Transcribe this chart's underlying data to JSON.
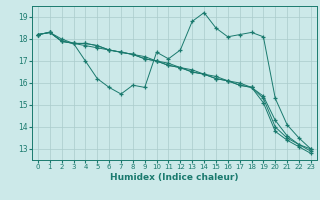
{
  "xlabel": "Humidex (Indice chaleur)",
  "ylabel": "",
  "xlim": [
    -0.5,
    23.5
  ],
  "ylim": [
    12.5,
    19.5
  ],
  "yticks": [
    13,
    14,
    15,
    16,
    17,
    18,
    19
  ],
  "xticks": [
    0,
    1,
    2,
    3,
    4,
    5,
    6,
    7,
    8,
    9,
    10,
    11,
    12,
    13,
    14,
    15,
    16,
    17,
    18,
    19,
    20,
    21,
    22,
    23
  ],
  "bg_color": "#cce9e9",
  "grid_color": "#aacccc",
  "line_color": "#1a7a6e",
  "line1_x": [
    0,
    1,
    2,
    3,
    4,
    5,
    6,
    7,
    8,
    9,
    10,
    11,
    12,
    13,
    14,
    15,
    16,
    17,
    18,
    19,
    20,
    21,
    22,
    23
  ],
  "line1_y": [
    18.2,
    18.3,
    18.0,
    17.8,
    17.0,
    16.2,
    15.8,
    15.5,
    15.9,
    15.8,
    17.4,
    17.1,
    17.5,
    18.8,
    19.2,
    18.5,
    18.1,
    18.2,
    18.3,
    18.1,
    15.3,
    14.1,
    13.5,
    13.0
  ],
  "line2_x": [
    0,
    1,
    2,
    3,
    4,
    5,
    6,
    7,
    8,
    9,
    10,
    11,
    12,
    13,
    14,
    15,
    16,
    17,
    18,
    19,
    20,
    21,
    22,
    23
  ],
  "line2_y": [
    18.2,
    18.3,
    17.9,
    17.8,
    17.8,
    17.7,
    17.5,
    17.4,
    17.3,
    17.2,
    17.0,
    16.9,
    16.7,
    16.6,
    16.4,
    16.3,
    16.1,
    16.0,
    15.8,
    15.4,
    14.3,
    13.6,
    13.2,
    13.0
  ],
  "line3_x": [
    0,
    1,
    2,
    3,
    4,
    5,
    6,
    7,
    8,
    9,
    10,
    11,
    12,
    13,
    14,
    15,
    16,
    17,
    18,
    19,
    20,
    21,
    22,
    23
  ],
  "line3_y": [
    18.2,
    18.3,
    17.9,
    17.8,
    17.8,
    17.7,
    17.5,
    17.4,
    17.3,
    17.1,
    17.0,
    16.8,
    16.7,
    16.5,
    16.4,
    16.2,
    16.1,
    15.9,
    15.8,
    15.3,
    14.0,
    13.5,
    13.2,
    12.9
  ],
  "line4_x": [
    0,
    1,
    2,
    3,
    4,
    5,
    6,
    7,
    8,
    9,
    10,
    11,
    12,
    13,
    14,
    15,
    16,
    17,
    18,
    19,
    20,
    21,
    22,
    23
  ],
  "line4_y": [
    18.2,
    18.3,
    17.9,
    17.8,
    17.7,
    17.6,
    17.5,
    17.4,
    17.3,
    17.1,
    17.0,
    16.8,
    16.7,
    16.5,
    16.4,
    16.2,
    16.1,
    15.9,
    15.8,
    15.1,
    13.8,
    13.4,
    13.1,
    12.8
  ]
}
